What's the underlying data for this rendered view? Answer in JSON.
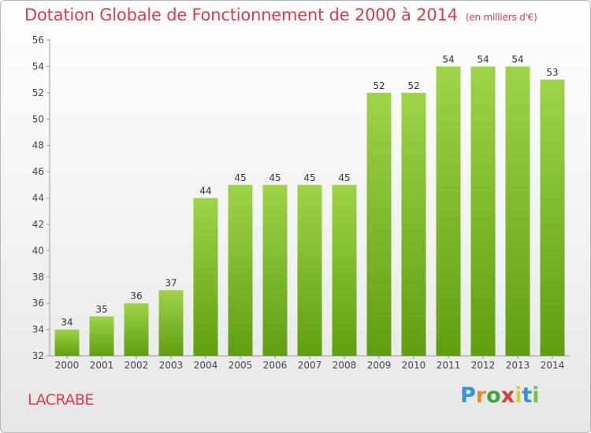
{
  "header": {
    "title": "Dotation Globale de Fonctionnement de 2000 à 2014",
    "subtitle": "(en milliers d'€)"
  },
  "footer": {
    "commune": "LACRABE",
    "logo_text": "Proxiti"
  },
  "colors": {
    "title": "#e4384b",
    "bar_top": "#9fd34a",
    "bar_bottom": "#5f9e12",
    "logo": [
      "#3a8fd6",
      "#e8892a",
      "#3fa535",
      "#e23a3a",
      "#d8d030",
      "#3a8fd6",
      "#7ac143"
    ]
  },
  "chart_data": {
    "type": "bar",
    "categories": [
      "2000",
      "2001",
      "2002",
      "2003",
      "2004",
      "2005",
      "2006",
      "2007",
      "2008",
      "2009",
      "2010",
      "2011",
      "2012",
      "2013",
      "2014"
    ],
    "values": [
      34,
      35,
      36,
      37,
      44,
      45,
      45,
      45,
      45,
      52,
      52,
      54,
      54,
      54,
      53
    ],
    "yticks": [
      32,
      34,
      36,
      38,
      40,
      42,
      44,
      46,
      48,
      50,
      52,
      54,
      56
    ],
    "ylim": [
      32,
      56
    ],
    "grid": false,
    "legend": "none"
  }
}
